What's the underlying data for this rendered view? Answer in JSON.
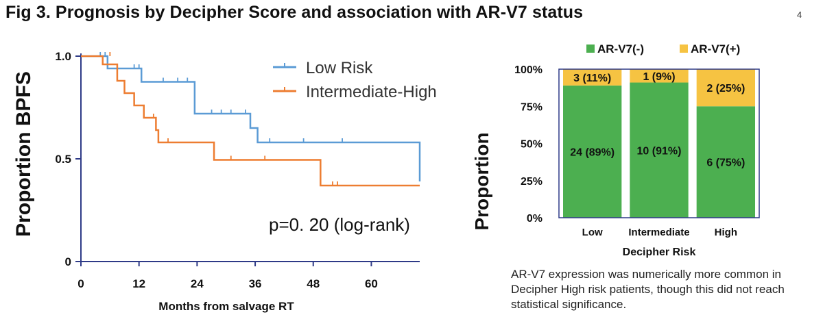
{
  "page": {
    "title": "Fig 3. Prognosis by Decipher Score and association with AR-V7 status",
    "page_number": "4",
    "caption": "AR-V7 expression was numerically more common in Decipher High risk patients, though this did not reach statistical significance."
  },
  "colors": {
    "low_risk": "#5b9bd5",
    "intermediate_high": "#ed7d31",
    "arv7_neg": "#4caf50",
    "arv7_pos": "#f6c342",
    "axis": "#2e3a87"
  },
  "chart_data": [
    {
      "type": "line",
      "subtype": "kaplan-meier",
      "title": "",
      "xlabel": "Months from salvage RT",
      "ylabel": "Proportion BPFS",
      "xlim": [
        0,
        70
      ],
      "ylim": [
        0,
        1.0
      ],
      "x_ticks": [
        0,
        12,
        24,
        36,
        48,
        60
      ],
      "y_ticks": [
        {
          "value": 0,
          "label": "0"
        },
        {
          "value": 0.5,
          "label": "0.5"
        },
        {
          "value": 1.0,
          "label": "1.0"
        }
      ],
      "annotation": "p=0. 20 (log-rank)",
      "legend_position": "top-right",
      "series": [
        {
          "name": "Low Risk",
          "color": "#5b9bd5",
          "steps": [
            [
              0,
              1.0
            ],
            [
              5.5,
              0.94
            ],
            [
              12.5,
              0.875
            ],
            [
              23.5,
              0.72
            ],
            [
              35,
              0.65
            ],
            [
              36.5,
              0.58
            ],
            [
              70,
              0.58
            ],
            [
              70,
              0.39
            ]
          ],
          "censors": [
            [
              4,
              1.0
            ],
            [
              5,
              1.0
            ],
            [
              11,
              0.94
            ],
            [
              12,
              0.94
            ],
            [
              17,
              0.875
            ],
            [
              20,
              0.875
            ],
            [
              22,
              0.875
            ],
            [
              27,
              0.72
            ],
            [
              29,
              0.72
            ],
            [
              31,
              0.72
            ],
            [
              34,
              0.72
            ],
            [
              39,
              0.58
            ],
            [
              46,
              0.58
            ],
            [
              54,
              0.58
            ]
          ]
        },
        {
          "name": "Intermediate-High",
          "color": "#ed7d31",
          "steps": [
            [
              0,
              1.0
            ],
            [
              4.5,
              0.96
            ],
            [
              7.5,
              0.88
            ],
            [
              9,
              0.82
            ],
            [
              11,
              0.76
            ],
            [
              13,
              0.7
            ],
            [
              15.5,
              0.64
            ],
            [
              16,
              0.58
            ],
            [
              27.5,
              0.495
            ],
            [
              49.5,
              0.37
            ],
            [
              70,
              0.37
            ]
          ],
          "censors": [
            [
              6,
              1.0
            ],
            [
              15,
              0.7
            ],
            [
              18,
              0.58
            ],
            [
              31,
              0.495
            ],
            [
              38,
              0.495
            ],
            [
              52,
              0.37
            ],
            [
              53,
              0.37
            ]
          ]
        }
      ]
    },
    {
      "type": "bar",
      "subtype": "stacked-percent",
      "title": "",
      "xlabel": "Decipher Risk",
      "ylabel": "Proportion",
      "ylim": [
        0,
        100
      ],
      "y_ticks": [
        {
          "value": 0,
          "label": "0%"
        },
        {
          "value": 25,
          "label": "25%"
        },
        {
          "value": 50,
          "label": "50%"
        },
        {
          "value": 75,
          "label": "75%"
        },
        {
          "value": 100,
          "label": "100%"
        }
      ],
      "categories": [
        "Low",
        "Intermediate",
        "High"
      ],
      "legend_position": "top",
      "series": [
        {
          "name": "AR-V7(-)",
          "color": "#4caf50",
          "values": [
            89,
            91,
            75
          ],
          "labels": [
            "24 (89%)",
            "10 (91%)",
            "6 (75%)"
          ]
        },
        {
          "name": "AR-V7(+)",
          "color": "#f6c342",
          "values": [
            11,
            9,
            25
          ],
          "labels": [
            "3 (11%)",
            "1 (9%)",
            "2 (25%)"
          ]
        }
      ]
    }
  ]
}
